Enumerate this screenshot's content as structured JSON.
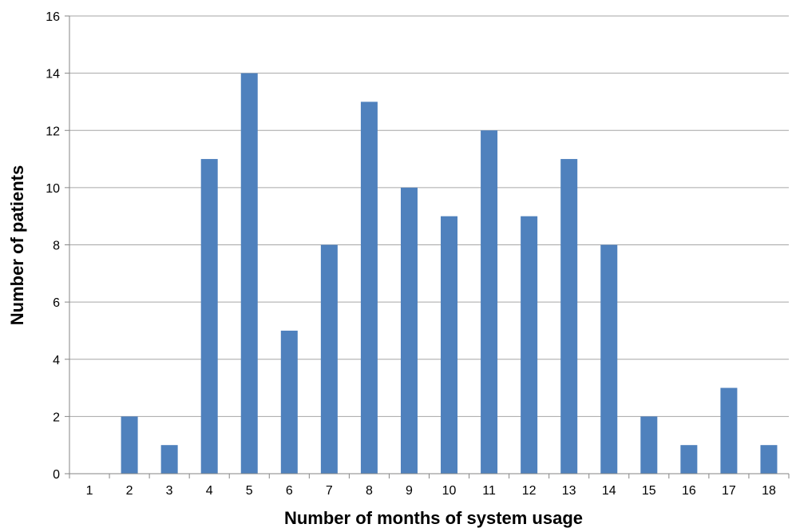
{
  "chart_data": {
    "type": "bar",
    "title": "",
    "xlabel": "Number of months of system usage",
    "ylabel": "Number of patients",
    "categories": [
      "1",
      "2",
      "3",
      "4",
      "5",
      "6",
      "7",
      "8",
      "9",
      "10",
      "11",
      "12",
      "13",
      "14",
      "15",
      "16",
      "17",
      "18"
    ],
    "values": [
      0,
      2,
      1,
      11,
      14,
      5,
      8,
      13,
      10,
      9,
      12,
      9,
      11,
      8,
      2,
      1,
      3,
      1
    ],
    "ylim": [
      0,
      16
    ],
    "yticks": [
      "0",
      "2",
      "4",
      "6",
      "8",
      "10",
      "12",
      "14",
      "16"
    ],
    "grid": true,
    "legend": "none",
    "colors": {
      "bar": "#4F81BD",
      "grid": "#A6A6A6",
      "axis": "#868686"
    }
  }
}
